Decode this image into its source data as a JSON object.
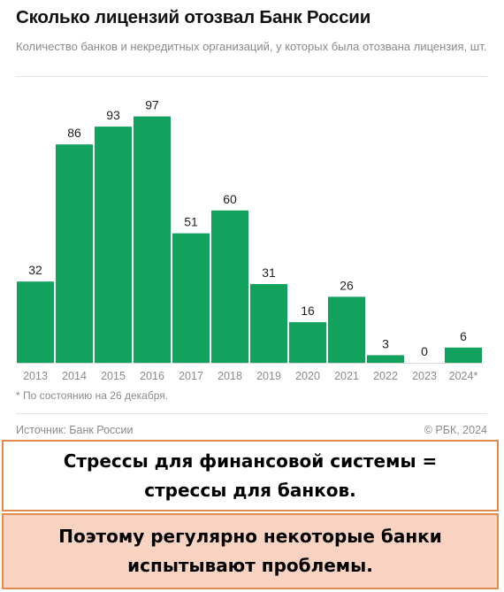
{
  "header": {
    "title": "Сколько лицензий отозвал Банк России",
    "subtitle": "Количество банков и некредитных организаций, у которых была отозвана лицензия, шт."
  },
  "footer": {
    "footnote": "* По состоянию на 26 декабря.",
    "source": "Источник: Банк России",
    "copyright": "© РБК, 2024"
  },
  "callouts": {
    "line1": "Стрессы для финансовой системы = стрессы для банков.",
    "line2": "Поэтому регулярно некоторые банки испытывают проблемы."
  },
  "colors": {
    "bar": "#13a25e",
    "callout_border": "#e08a4c",
    "callout_fill": "#f8d3c1"
  },
  "chart_data": {
    "type": "bar",
    "title": "Сколько лицензий отозвал Банк России",
    "subtitle": "Количество банков и некредитных организаций, у которых была отозвана лицензия, шт.",
    "categories": [
      "2013",
      "2014",
      "2015",
      "2016",
      "2017",
      "2018",
      "2019",
      "2020",
      "2021",
      "2022",
      "2023",
      "2024*"
    ],
    "values": [
      32,
      86,
      93,
      97,
      51,
      60,
      31,
      16,
      26,
      3,
      0,
      6
    ],
    "xlabel": "",
    "ylabel": "",
    "ylim": [
      0,
      100
    ],
    "grid": false,
    "legend": "none",
    "data_labels": true
  }
}
